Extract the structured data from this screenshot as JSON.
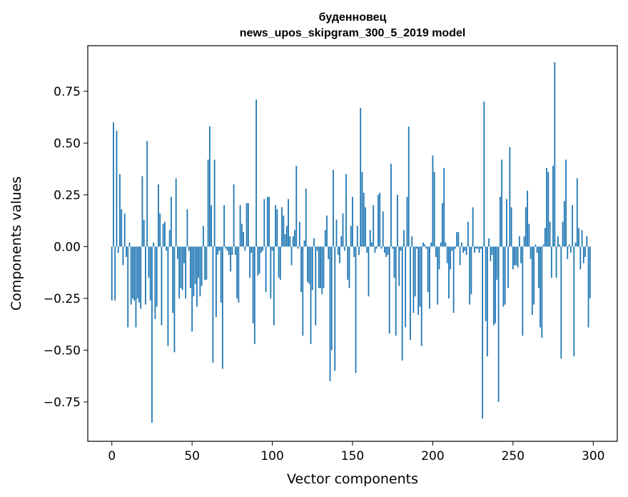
{
  "chart_data": {
    "type": "bar",
    "title": "буденновец",
    "subtitle": "news_upos_skipgram_300_5_2019 model",
    "xlabel": "Vector components",
    "ylabel": "Components values",
    "xlim": [
      -15,
      315
    ],
    "ylim": [
      -0.94,
      0.97
    ],
    "xticks": [
      0,
      50,
      100,
      150,
      200,
      250,
      300
    ],
    "yticks": [
      -0.75,
      -0.5,
      -0.25,
      0.0,
      0.25,
      0.5,
      0.75
    ],
    "ytick_labels": [
      "−0.75",
      "−0.50",
      "−0.25",
      "0.00",
      "0.25",
      "0.50",
      "0.75"
    ],
    "grid": false,
    "legend": "none",
    "bar_color": "#1f77b4",
    "values": [
      -0.26,
      0.6,
      -0.26,
      0.56,
      -0.03,
      0.35,
      0.18,
      -0.09,
      0.16,
      -0.05,
      -0.39,
      0.02,
      -0.28,
      -0.25,
      -0.26,
      -0.39,
      -0.25,
      -0.27,
      -0.3,
      0.34,
      0.13,
      -0.28,
      0.51,
      -0.15,
      -0.26,
      -0.85,
      0.02,
      -0.35,
      -0.29,
      0.3,
      0.16,
      -0.38,
      0.11,
      0.12,
      -0.02,
      -0.48,
      0.08,
      0.24,
      -0.32,
      -0.51,
      0.33,
      -0.06,
      -0.25,
      -0.2,
      -0.21,
      -0.08,
      -0.25,
      0.18,
      -0.02,
      -0.2,
      -0.41,
      -0.24,
      -0.18,
      -0.29,
      -0.15,
      -0.24,
      -0.19,
      0.1,
      -0.16,
      -0.16,
      0.42,
      0.58,
      0.2,
      -0.56,
      0.42,
      -0.34,
      -0.04,
      -0.02,
      -0.27,
      -0.59,
      0.2,
      -0.01,
      -0.02,
      -0.04,
      -0.12,
      -0.04,
      0.3,
      -0.04,
      -0.25,
      -0.27,
      0.2,
      0.11,
      0.07,
      -0.02,
      0.21,
      0.21,
      -0.15,
      -0.03,
      -0.37,
      -0.47,
      0.71,
      -0.14,
      -0.13,
      -0.03,
      -0.02,
      0.23,
      -0.22,
      0.24,
      0.24,
      -0.25,
      -0.02,
      -0.38,
      0.2,
      0.18,
      -0.15,
      -0.16,
      0.19,
      0.15,
      0.06,
      0.1,
      0.23,
      0.05,
      -0.09,
      0.05,
      0.08,
      0.39,
      -0.01,
      0.12,
      -0.22,
      -0.43,
      0.03,
      0.28,
      -0.17,
      -0.18,
      -0.47,
      -0.21,
      0.04,
      -0.38,
      -0.02,
      -0.2,
      -0.2,
      -0.23,
      -0.2,
      0.08,
      0.15,
      -0.06,
      -0.65,
      -0.5,
      0.37,
      -0.6,
      0.13,
      -0.04,
      -0.08,
      0.05,
      0.16,
      -0.02,
      0.35,
      -0.16,
      -0.2,
      0.1,
      0.24,
      -0.05,
      -0.61,
      0.1,
      -0.04,
      0.67,
      0.36,
      0.26,
      0.19,
      -0.03,
      -0.24,
      0.08,
      0.02,
      0.2,
      -0.03,
      -0.01,
      0.25,
      0.26,
      -0.01,
      0.17,
      -0.03,
      -0.05,
      -0.04,
      -0.42,
      0.4,
      -0.01,
      -0.15,
      -0.43,
      0.25,
      -0.19,
      -0.02,
      -0.55,
      0.08,
      -0.39,
      0.24,
      0.58,
      -0.45,
      0.05,
      -0.32,
      -0.24,
      -0.01,
      -0.33,
      -0.29,
      -0.48,
      0.02,
      0.01,
      -0.01,
      -0.22,
      -0.3,
      0.02,
      0.44,
      0.36,
      -0.05,
      -0.28,
      -0.11,
      0.02,
      0.21,
      0.38,
      0.02,
      -0.08,
      -0.25,
      -0.11,
      -0.02,
      -0.32,
      -0.01,
      0.07,
      0.07,
      -0.09,
      0.02,
      -0.03,
      -0.02,
      -0.04,
      0.12,
      -0.28,
      -0.23,
      0.19,
      -0.03,
      -0.01,
      -0.01,
      -0.03,
      -0.01,
      -0.83,
      0.7,
      -0.36,
      -0.53,
      0.04,
      -0.07,
      -0.04,
      -0.38,
      -0.37,
      -0.16,
      -0.75,
      0.24,
      0.42,
      -0.29,
      -0.28,
      0.23,
      -0.2,
      0.48,
      0.19,
      -0.11,
      -0.09,
      -0.09,
      -0.1,
      0.05,
      -0.08,
      -0.43,
      0.05,
      0.19,
      0.27,
      0.11,
      -0.06,
      -0.33,
      -0.28,
      0.01,
      -0.03,
      -0.2,
      -0.39,
      -0.44,
      0.01,
      0.09,
      0.38,
      0.36,
      0.12,
      -0.15,
      0.39,
      0.89,
      -0.15,
      0.05,
      0.01,
      -0.54,
      0.12,
      0.22,
      0.42,
      -0.06,
      0.01,
      -0.03,
      0.2,
      -0.53,
      0.02,
      0.33,
      0.09,
      -0.11,
      0.08,
      -0.08,
      -0.05,
      0.05,
      -0.39,
      -0.25
    ]
  }
}
